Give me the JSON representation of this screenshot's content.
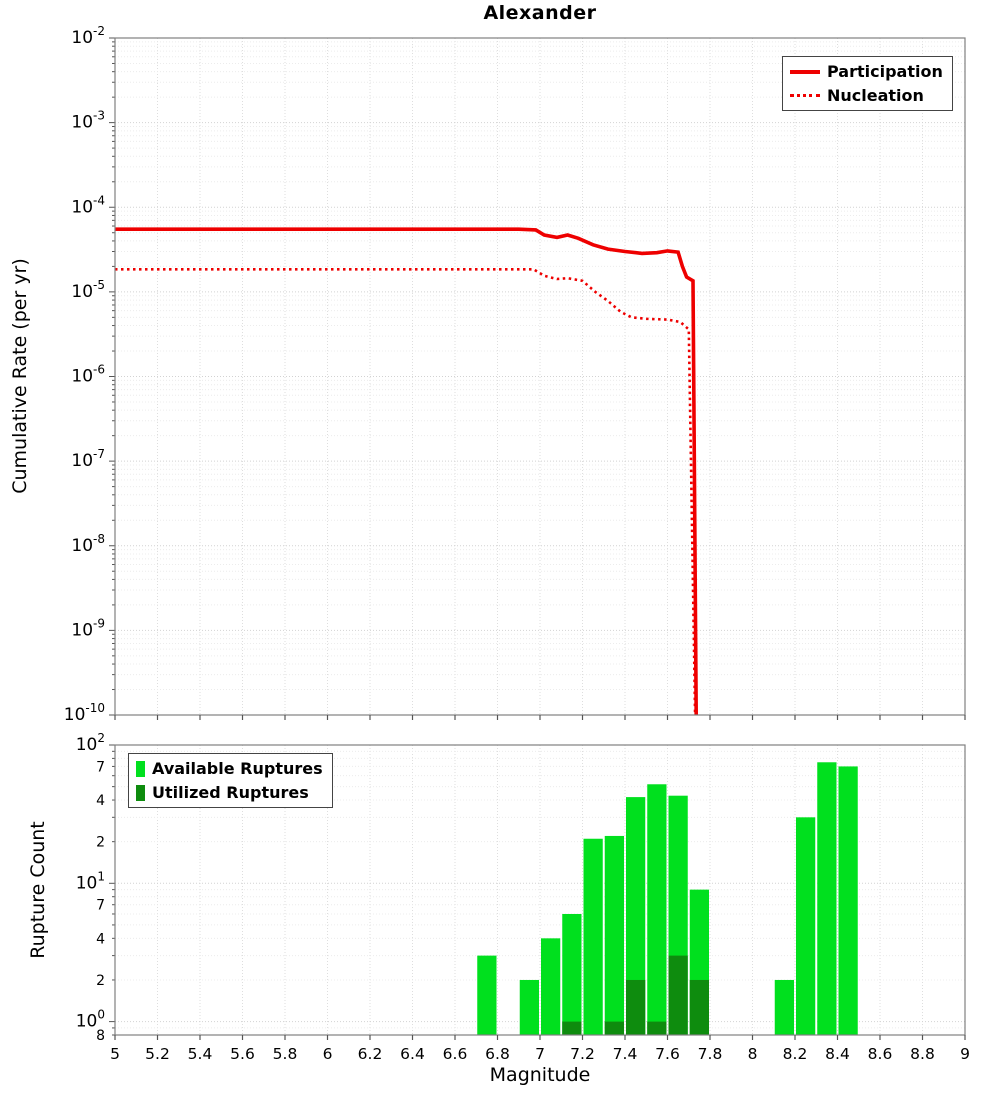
{
  "title": "Alexander",
  "colors": {
    "participation": "#ee0000",
    "nucleation": "#ee0000",
    "available": "#00e01e",
    "utilized": "#0e8c0e"
  },
  "chart_data": [
    {
      "type": "line",
      "title": "Alexander",
      "xlabel": "",
      "ylabel": "Cumulative Rate (per yr)",
      "xlim": [
        5,
        9
      ],
      "ylim": [
        1e-10,
        0.01
      ],
      "yscale": "log",
      "grid": true,
      "legend_position": "top-right",
      "series": [
        {
          "name": "Participation",
          "style": "solid",
          "color": "#ee0000",
          "points": [
            [
              5.0,
              5.5e-05
            ],
            [
              6.9,
              5.5e-05
            ],
            [
              6.98,
              5.4e-05
            ],
            [
              7.02,
              4.7e-05
            ],
            [
              7.08,
              4.4e-05
            ],
            [
              7.13,
              4.7e-05
            ],
            [
              7.18,
              4.3e-05
            ],
            [
              7.25,
              3.6e-05
            ],
            [
              7.32,
              3.2e-05
            ],
            [
              7.4,
              3e-05
            ],
            [
              7.48,
              2.85e-05
            ],
            [
              7.55,
              2.9e-05
            ],
            [
              7.6,
              3.05e-05
            ],
            [
              7.65,
              2.95e-05
            ],
            [
              7.67,
              2e-05
            ],
            [
              7.69,
              1.5e-05
            ],
            [
              7.72,
              1.35e-05
            ],
            [
              7.735,
              1e-10
            ]
          ]
        },
        {
          "name": "Nucleation",
          "style": "dotted",
          "color": "#ee0000",
          "points": [
            [
              5.0,
              1.85e-05
            ],
            [
              6.97,
              1.85e-05
            ],
            [
              7.02,
              1.55e-05
            ],
            [
              7.08,
              1.42e-05
            ],
            [
              7.13,
              1.45e-05
            ],
            [
              7.2,
              1.35e-05
            ],
            [
              7.26,
              1e-05
            ],
            [
              7.32,
              7.8e-06
            ],
            [
              7.38,
              5.8e-06
            ],
            [
              7.43,
              5e-06
            ],
            [
              7.5,
              4.8e-06
            ],
            [
              7.6,
              4.7e-06
            ],
            [
              7.66,
              4.4e-06
            ],
            [
              7.7,
              3.6e-06
            ],
            [
              7.73,
              1e-10
            ]
          ]
        }
      ],
      "yticks": [
        {
          "v": 0.01,
          "t": "10^-2"
        },
        {
          "v": 0.001,
          "t": "10^-3"
        },
        {
          "v": 0.0001,
          "t": "10^-4"
        },
        {
          "v": 1e-05,
          "t": "10^-5"
        },
        {
          "v": 1e-06,
          "t": "10^-6"
        },
        {
          "v": 1e-07,
          "t": "10^-7"
        },
        {
          "v": 1e-08,
          "t": "10^-8"
        },
        {
          "v": 1e-09,
          "t": "10^-9"
        },
        {
          "v": 1e-10,
          "t": "10^-10"
        }
      ]
    },
    {
      "type": "bar",
      "title": "",
      "xlabel": "Magnitude",
      "ylabel": "Rupture Count",
      "xlim": [
        5,
        9
      ],
      "ylim": [
        0.8,
        100
      ],
      "yscale": "log",
      "grid": true,
      "legend_position": "top-left",
      "bin_width": 0.1,
      "series": [
        {
          "name": "Available Ruptures",
          "color": "#00e01e",
          "bins": [
            [
              6.7,
              3
            ],
            [
              6.9,
              2
            ],
            [
              7.0,
              4
            ],
            [
              7.1,
              6
            ],
            [
              7.2,
              21
            ],
            [
              7.3,
              22
            ],
            [
              7.4,
              42
            ],
            [
              7.5,
              52
            ],
            [
              7.6,
              43
            ],
            [
              7.7,
              9
            ],
            [
              8.1,
              2
            ],
            [
              8.2,
              30
            ],
            [
              8.3,
              75
            ],
            [
              8.4,
              70
            ]
          ]
        },
        {
          "name": "Utilized Ruptures",
          "color": "#0e8c0e",
          "bins": [
            [
              7.1,
              1
            ],
            [
              7.3,
              1
            ],
            [
              7.4,
              2
            ],
            [
              7.5,
              1
            ],
            [
              7.6,
              3
            ],
            [
              7.7,
              2
            ]
          ]
        }
      ],
      "yticks": [
        {
          "v": 100,
          "t": "10^2"
        },
        {
          "v": 70,
          "t": "7"
        },
        {
          "v": 40,
          "t": "4"
        },
        {
          "v": 20,
          "t": "2"
        },
        {
          "v": 10,
          "t": "10^1"
        },
        {
          "v": 7,
          "t": "7"
        },
        {
          "v": 4,
          "t": "4"
        },
        {
          "v": 2,
          "t": "2"
        },
        {
          "v": 1,
          "t": "10^0"
        },
        {
          "v": 0.8,
          "t": "8"
        }
      ],
      "xticks": [
        {
          "v": 5,
          "t": "5"
        },
        {
          "v": 5.2,
          "t": "5.2"
        },
        {
          "v": 5.4,
          "t": "5.4"
        },
        {
          "v": 5.6,
          "t": "5.6"
        },
        {
          "v": 5.8,
          "t": "5.8"
        },
        {
          "v": 6,
          "t": "6"
        },
        {
          "v": 6.2,
          "t": "6.2"
        },
        {
          "v": 6.4,
          "t": "6.4"
        },
        {
          "v": 6.6,
          "t": "6.6"
        },
        {
          "v": 6.8,
          "t": "6.8"
        },
        {
          "v": 7,
          "t": "7"
        },
        {
          "v": 7.2,
          "t": "7.2"
        },
        {
          "v": 7.4,
          "t": "7.4"
        },
        {
          "v": 7.6,
          "t": "7.6"
        },
        {
          "v": 7.8,
          "t": "7.8"
        },
        {
          "v": 8,
          "t": "8"
        },
        {
          "v": 8.2,
          "t": "8.2"
        },
        {
          "v": 8.4,
          "t": "8.4"
        },
        {
          "v": 8.6,
          "t": "8.6"
        },
        {
          "v": 8.8,
          "t": "8.8"
        },
        {
          "v": 9,
          "t": "9"
        }
      ]
    }
  ]
}
